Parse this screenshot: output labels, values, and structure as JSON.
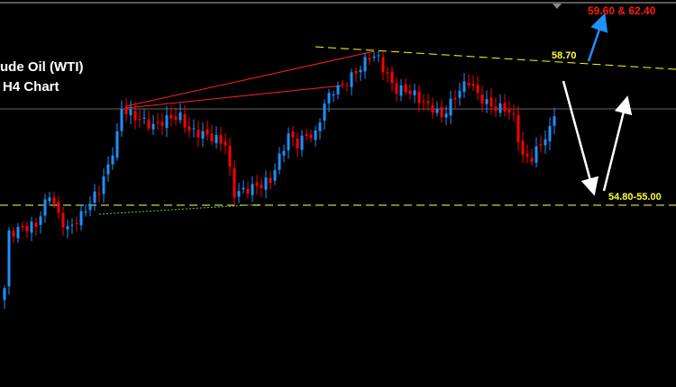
{
  "title_line1": "ude Oil (WTI)",
  "title_line2": "H4 Chart",
  "annotations": {
    "target_label": "59.60 & 62.40",
    "resistance_label": "58.70",
    "support_label": "54.80-55.00"
  },
  "colors": {
    "background": "#000000",
    "bull": "#1e90ff",
    "bear": "#ff0000",
    "resistance": "#ffff00",
    "support": "#ffff66",
    "target": "#ff0000",
    "target_arrow": "#1e90ff",
    "scenario_arrow": "#ffffff"
  },
  "chart_data": {
    "type": "candlestick",
    "instrument": "Crude Oil (WTI)",
    "timeframe": "H4",
    "close_keypoints": [
      [
        0,
        52.89
      ],
      [
        1,
        54.27
      ],
      [
        3,
        54.38
      ],
      [
        7,
        54.5
      ],
      [
        10,
        55.3
      ],
      [
        12,
        54.73
      ],
      [
        14,
        54.38
      ],
      [
        17,
        54.73
      ],
      [
        21,
        55.41
      ],
      [
        23,
        55.98
      ],
      [
        25,
        56.78
      ],
      [
        26,
        57.47
      ],
      [
        29,
        57.24
      ],
      [
        33,
        57.01
      ],
      [
        37,
        57.24
      ],
      [
        39,
        57.24
      ],
      [
        41,
        56.9
      ],
      [
        45,
        56.78
      ],
      [
        49,
        56.56
      ],
      [
        50,
        55.87
      ],
      [
        51,
        55.3
      ],
      [
        54,
        55.41
      ],
      [
        57,
        55.53
      ],
      [
        59,
        55.64
      ],
      [
        61,
        56.21
      ],
      [
        63,
        56.78
      ],
      [
        65,
        56.56
      ],
      [
        67,
        56.78
      ],
      [
        69,
        56.78
      ],
      [
        71,
        57.59
      ],
      [
        73,
        57.93
      ],
      [
        75,
        58.04
      ],
      [
        77,
        58.27
      ],
      [
        79,
        58.5
      ],
      [
        81,
        58.8
      ],
      [
        83,
        58.73
      ],
      [
        85,
        58.27
      ],
      [
        87,
        57.93
      ],
      [
        89,
        57.93
      ],
      [
        91,
        57.81
      ],
      [
        93,
        57.59
      ],
      [
        95,
        57.47
      ],
      [
        97,
        57.24
      ],
      [
        99,
        57.59
      ],
      [
        101,
        57.93
      ],
      [
        103,
        58.16
      ],
      [
        105,
        57.81
      ],
      [
        107,
        57.59
      ],
      [
        109,
        57.47
      ],
      [
        111,
        57.47
      ],
      [
        113,
        57.24
      ],
      [
        115,
        56.21
      ],
      [
        117,
        56.21
      ],
      [
        119,
        56.56
      ],
      [
        121,
        56.9
      ],
      [
        122,
        57.36
      ]
    ],
    "levels": {
      "resistance": 58.7,
      "support": [
        54.8,
        55.0
      ],
      "targets": [
        59.6,
        62.4
      ]
    }
  }
}
